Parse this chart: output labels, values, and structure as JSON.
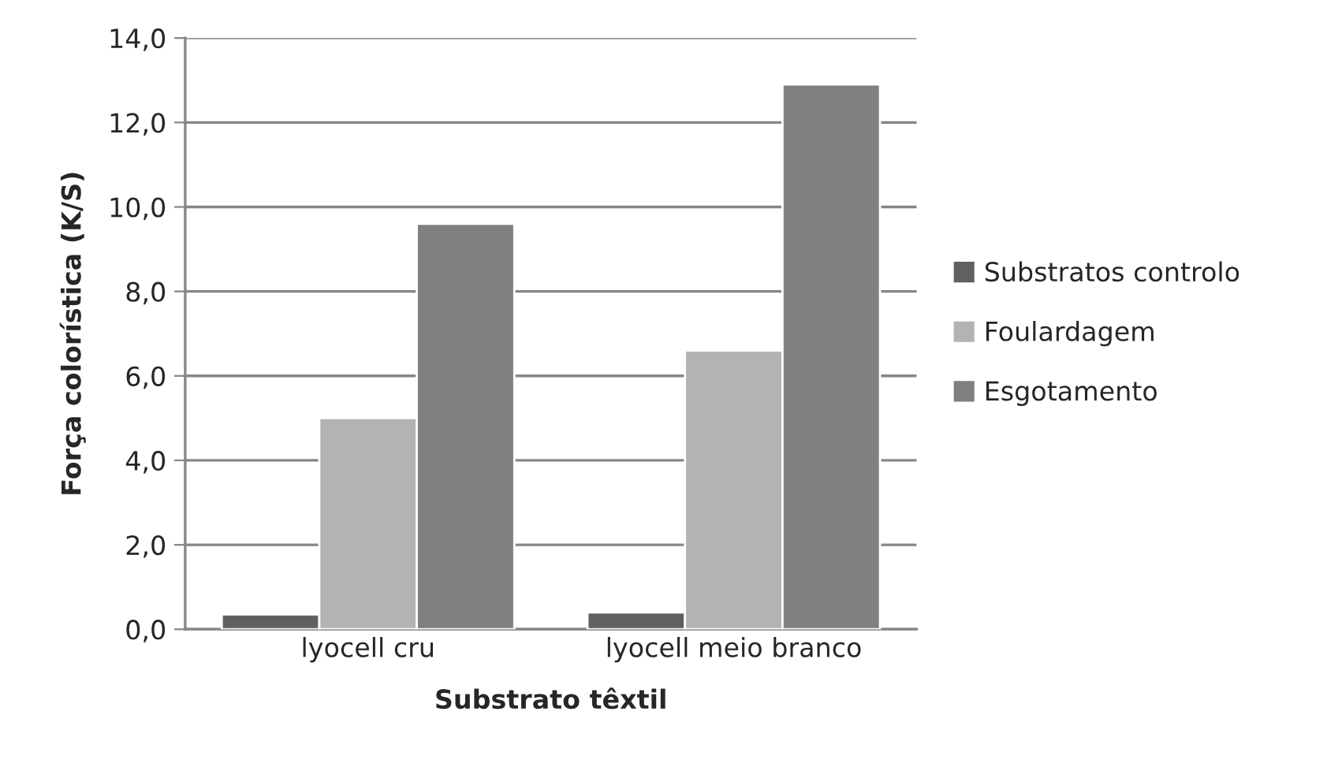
{
  "chart_data": {
    "type": "bar",
    "xlabel": "Substrato têxtil",
    "ylabel": "Força colorística (K/S)",
    "categories": [
      "lyocell cru",
      "lyocell meio branco"
    ],
    "series": [
      {
        "name": "Substratos controlo",
        "color": "#606060",
        "values": [
          0.35,
          0.4
        ]
      },
      {
        "name": "Foulardagem",
        "color": "#b3b3b3",
        "values": [
          5.0,
          6.6
        ]
      },
      {
        "name": "Esgotamento",
        "color": "#808080",
        "values": [
          9.6,
          12.9
        ]
      }
    ],
    "ylim": [
      0,
      14
    ],
    "yticks": [
      {
        "value": 0,
        "label": "0,0"
      },
      {
        "value": 2,
        "label": "2,0"
      },
      {
        "value": 4,
        "label": "4,0"
      },
      {
        "value": 6,
        "label": "6,0"
      },
      {
        "value": 8,
        "label": "8,0"
      },
      {
        "value": 10,
        "label": "10,0"
      },
      {
        "value": 12,
        "label": "12,0"
      },
      {
        "value": 14,
        "label": "14,0"
      }
    ],
    "grid": "y",
    "legend": "right"
  }
}
